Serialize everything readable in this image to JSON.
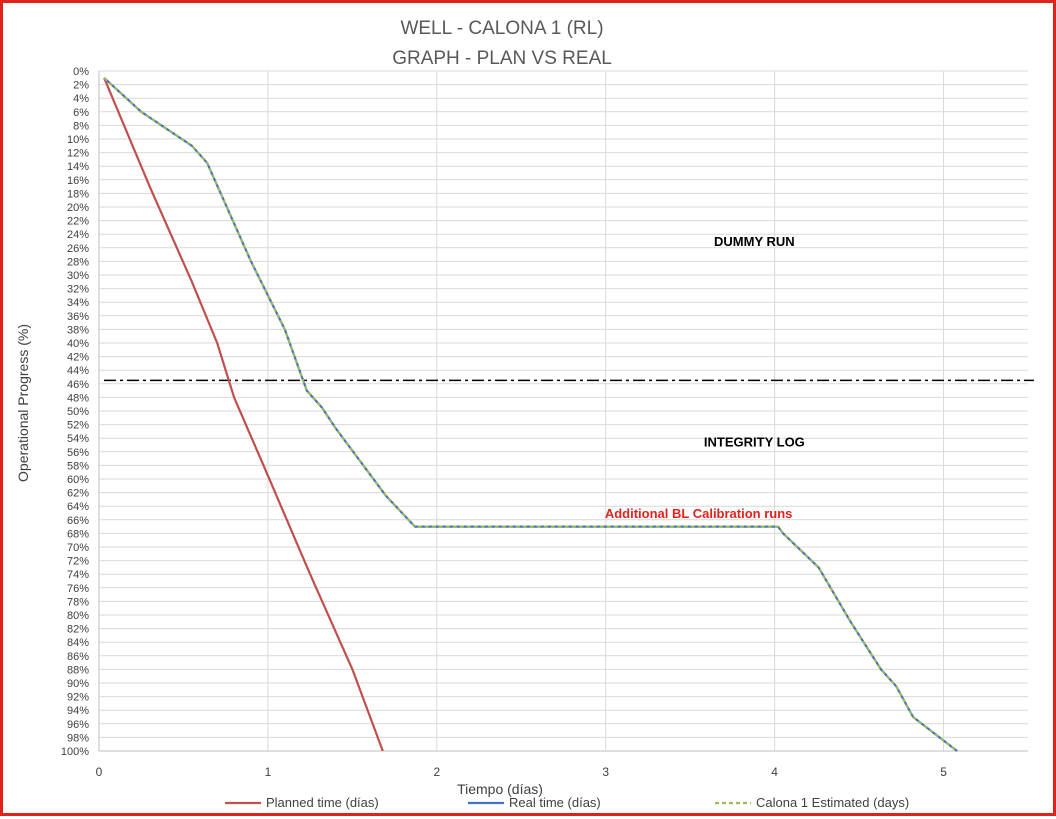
{
  "chart_data": {
    "type": "line",
    "title_line1": "WELL -  CALONA 1 (RL)",
    "title_line2": "GRAPH  - PLAN VS REAL",
    "xlabel": "Tiempo (días)",
    "ylabel": "Operational Progress (%)",
    "xlim": [
      0,
      5.5
    ],
    "ylim": [
      0,
      100
    ],
    "y_inverted": true,
    "x_ticks": [
      "0",
      "1",
      "2",
      "3",
      "4",
      "5"
    ],
    "y_ticks": [
      "0%",
      "2%",
      "4%",
      "6%",
      "8%",
      "10%",
      "12%",
      "14%",
      "16%",
      "18%",
      "20%",
      "22%",
      "24%",
      "26%",
      "28%",
      "30%",
      "32%",
      "34%",
      "36%",
      "38%",
      "40%",
      "42%",
      "44%",
      "46%",
      "48%",
      "50%",
      "52%",
      "54%",
      "56%",
      "58%",
      "60%",
      "62%",
      "64%",
      "66%",
      "68%",
      "70%",
      "72%",
      "74%",
      "76%",
      "78%",
      "80%",
      "82%",
      "84%",
      "86%",
      "88%",
      "90%",
      "92%",
      "94%",
      "96%",
      "98%",
      "100%"
    ],
    "grid": true,
    "series": [
      {
        "name": "Planned time (días)",
        "color": "#c0504d",
        "dash": "solid",
        "points": [
          [
            0.03,
            1
          ],
          [
            0.3,
            17
          ],
          [
            0.55,
            31
          ],
          [
            0.7,
            40
          ],
          [
            0.8,
            48
          ],
          [
            1.0,
            59.5
          ],
          [
            1.25,
            74
          ],
          [
            1.5,
            88
          ],
          [
            1.68,
            100
          ]
        ]
      },
      {
        "name": "Real time (días)",
        "color": "#4472c4",
        "dash": "solid",
        "points": [
          [
            0.03,
            1
          ],
          [
            0.25,
            6
          ],
          [
            0.55,
            11
          ],
          [
            0.64,
            13.5
          ],
          [
            0.9,
            28
          ],
          [
            1.1,
            38
          ],
          [
            1.23,
            47
          ],
          [
            1.32,
            49.5
          ],
          [
            1.4,
            52.5
          ],
          [
            1.7,
            62.5
          ],
          [
            1.87,
            67
          ],
          [
            4.02,
            67
          ],
          [
            4.05,
            68
          ],
          [
            4.26,
            73
          ],
          [
            4.45,
            81
          ],
          [
            4.63,
            88
          ],
          [
            4.72,
            90.5
          ],
          [
            4.82,
            95
          ],
          [
            5.08,
            100
          ]
        ]
      },
      {
        "name": "Calona 1 Estimated (days)",
        "color": "#9bbb59",
        "dash": "dashed",
        "points": [
          [
            0.03,
            1
          ],
          [
            0.25,
            6
          ],
          [
            0.55,
            11
          ],
          [
            0.64,
            13.5
          ],
          [
            0.9,
            28
          ],
          [
            1.1,
            38
          ],
          [
            1.23,
            47
          ],
          [
            1.32,
            49.5
          ],
          [
            1.4,
            52.5
          ],
          [
            1.7,
            62.5
          ],
          [
            1.87,
            67
          ],
          [
            4.02,
            67
          ],
          [
            4.05,
            68
          ],
          [
            4.26,
            73
          ],
          [
            4.45,
            81
          ],
          [
            4.63,
            88
          ],
          [
            4.72,
            90.5
          ],
          [
            4.82,
            95
          ],
          [
            5.08,
            100
          ]
        ]
      }
    ],
    "reference_line": {
      "y": 45.5,
      "style": "dash-dot",
      "color": "#000000"
    },
    "annotations": [
      {
        "text": "DUMMY RUN",
        "x": 3.88,
        "y": 25,
        "color": "#000000"
      },
      {
        "text": "INTEGRITY LOG",
        "x": 3.88,
        "y": 54.5,
        "color": "#000000"
      },
      {
        "text": "Additional BL Calibration runs",
        "x": 3.55,
        "y": 65,
        "color": "#e0221c"
      }
    ],
    "legend_position": "bottom"
  }
}
